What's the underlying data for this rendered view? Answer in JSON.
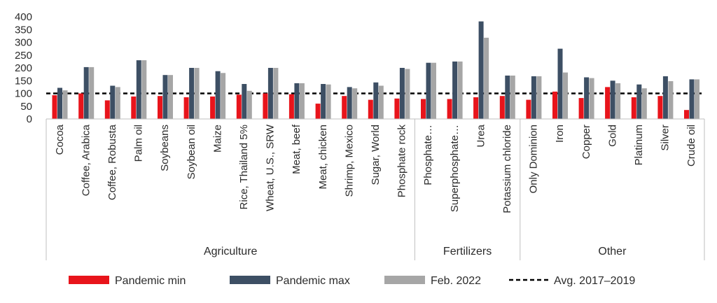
{
  "chart_data": {
    "type": "bar",
    "ylim": [
      0,
      400
    ],
    "yticks": [
      0,
      50,
      100,
      150,
      200,
      250,
      300,
      350,
      400
    ],
    "reference_line": {
      "name": "Avg. 2017–2019",
      "value": 100
    },
    "categories": [
      "Cocoa",
      "Coffee, Arabica",
      "Coffee, Robusta",
      "Palm oil",
      "Soybeans",
      "Soybean oil",
      "Maize",
      "Rice, Thailand 5%",
      "Wheat, U.S., SRW",
      "Meat, beef",
      "Meat, chicken",
      "Shrimp, Mexico",
      "Sugar, World",
      "Phosphate rock",
      "Phosphate…",
      "Superphosphate…",
      "Urea",
      "Potassium chloride",
      "Only Dominion",
      "Iron",
      "Copper",
      "Gold",
      "Platinum",
      "Silver",
      "Crude oil"
    ],
    "groups": [
      {
        "name": "Agriculture",
        "start": 0,
        "end": 13
      },
      {
        "name": "Fertilizers",
        "start": 14,
        "end": 17
      },
      {
        "name": "Other",
        "start": 18,
        "end": 24
      }
    ],
    "series": [
      {
        "name": "Pandemic min",
        "color": "#e8141b",
        "values": [
          93,
          100,
          73,
          88,
          90,
          85,
          88,
          95,
          100,
          97,
          60,
          90,
          75,
          80,
          78,
          78,
          85,
          90,
          75,
          107,
          82,
          125,
          85,
          90,
          35
        ]
      },
      {
        "name": "Pandemic max",
        "color": "#3d4f64",
        "values": [
          122,
          203,
          130,
          230,
          172,
          200,
          187,
          137,
          200,
          140,
          137,
          125,
          143,
          200,
          220,
          225,
          382,
          170,
          167,
          275,
          163,
          150,
          135,
          167,
          155
        ]
      },
      {
        "name": "Feb. 2022",
        "color": "#a6a6a6",
        "values": [
          112,
          203,
          125,
          230,
          172,
          200,
          180,
          110,
          200,
          140,
          135,
          120,
          130,
          196,
          220,
          225,
          318,
          170,
          167,
          182,
          160,
          140,
          120,
          148,
          155
        ]
      }
    ]
  }
}
